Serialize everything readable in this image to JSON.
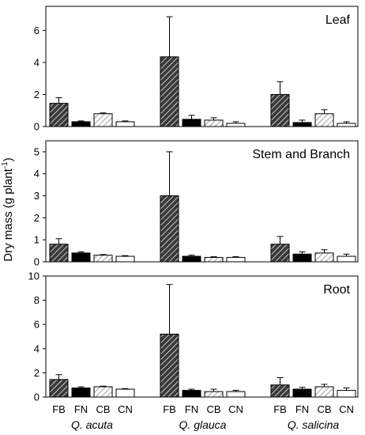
{
  "chart_data": {
    "type": "bar",
    "ylabel": "Dry mass (g plant",
    "ylabel_sup": "-1",
    "treatments": [
      "FB",
      "FN",
      "CB",
      "CN"
    ],
    "species": [
      "Q. acuta",
      "Q. glauca",
      "Q. salicina"
    ],
    "treatment_styles": {
      "FB": {
        "fill": "#333333",
        "hatch": "dark-diagonal"
      },
      "FN": {
        "fill": "#000000",
        "hatch": "none"
      },
      "CB": {
        "fill": "#ffffff",
        "hatch": "light-diagonal"
      },
      "CN": {
        "fill": "#ffffff",
        "hatch": "none"
      }
    },
    "panels": [
      {
        "title": "Leaf",
        "ylim": [
          0,
          7.5
        ],
        "yticks": [
          0,
          2,
          4,
          6
        ],
        "values": [
          [
            1.45,
            0.3,
            0.8,
            0.3
          ],
          [
            4.35,
            0.45,
            0.4,
            0.2
          ],
          [
            2.0,
            0.25,
            0.8,
            0.2
          ]
        ],
        "errors": [
          [
            0.35,
            0.05,
            0.05,
            0.05
          ],
          [
            2.5,
            0.25,
            0.15,
            0.1
          ],
          [
            0.8,
            0.15,
            0.25,
            0.1
          ]
        ]
      },
      {
        "title": "Stem and Branch",
        "ylim": [
          0,
          5.5
        ],
        "yticks": [
          0,
          1,
          2,
          3,
          4,
          5
        ],
        "values": [
          [
            0.8,
            0.4,
            0.3,
            0.25
          ],
          [
            3.0,
            0.25,
            0.2,
            0.2
          ],
          [
            0.8,
            0.35,
            0.4,
            0.25
          ]
        ],
        "errors": [
          [
            0.25,
            0.05,
            0.03,
            0.03
          ],
          [
            2.0,
            0.05,
            0.03,
            0.03
          ],
          [
            0.35,
            0.1,
            0.15,
            0.1
          ]
        ]
      },
      {
        "title": "Root",
        "ylim": [
          0,
          10
        ],
        "yticks": [
          0,
          2,
          4,
          6,
          8,
          10
        ],
        "values": [
          [
            1.45,
            0.75,
            0.85,
            0.65
          ],
          [
            5.2,
            0.55,
            0.45,
            0.45
          ],
          [
            1.0,
            0.65,
            0.85,
            0.55
          ]
        ],
        "errors": [
          [
            0.4,
            0.1,
            0.05,
            0.05
          ],
          [
            4.1,
            0.1,
            0.2,
            0.1
          ],
          [
            0.6,
            0.15,
            0.2,
            0.2
          ]
        ]
      }
    ]
  }
}
